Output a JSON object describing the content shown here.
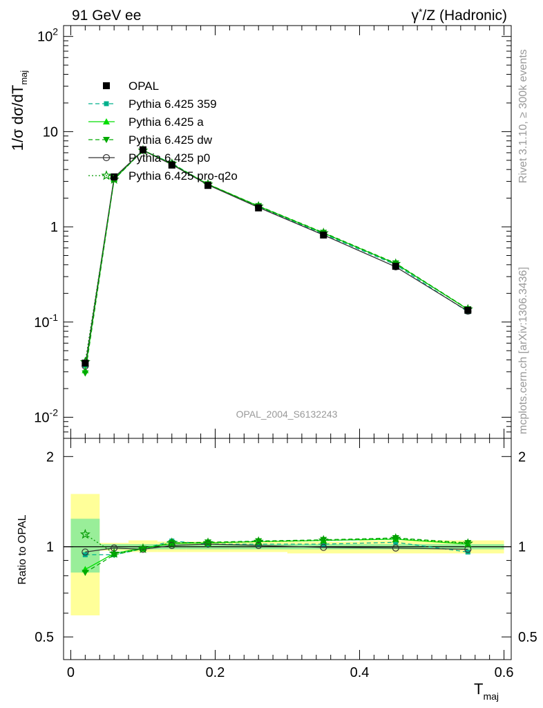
{
  "header": {
    "left": "91 GeV ee",
    "right_prefix": "γ",
    "right_sup": "*",
    "right_suffix": "/Z (Hadronic)"
  },
  "side_labels": {
    "rivet": "Rivet 3.1.10, ≥ 300k events",
    "mcplots": "mcplots.cern.ch [arXiv:1306.3436]"
  },
  "analysis_id": "OPAL_2004_S6132243",
  "axes": {
    "ylabel_top_main": "1/σ dσ/dT",
    "ylabel_top_sub": "maj",
    "ylabel_ratio": "Ratio to OPAL",
    "xlabel_main": "T",
    "xlabel_sub": "maj",
    "top_ticks": [
      {
        "label": "10",
        "sup": "-2",
        "value": 0.01
      },
      {
        "label": "10",
        "sup": "-1",
        "value": 0.1
      },
      {
        "label": "1",
        "sup": "",
        "value": 1
      },
      {
        "label": "10",
        "sup": "",
        "value": 10
      },
      {
        "label": "10",
        "sup": "2",
        "value": 100
      }
    ],
    "ratio_ticks": [
      "0.5",
      "1",
      "2"
    ],
    "x_ticks": [
      "0",
      "0.2",
      "0.4",
      "0.6"
    ]
  },
  "colors": {
    "opal": "#000000",
    "p359": "#00b08c",
    "a": "#00dd00",
    "dw": "#00aa00",
    "p0": "#333333",
    "q2o": "#009900",
    "band_inner": "#99ee99",
    "band_outer": "#ffff99"
  },
  "chart_data": {
    "type": "line",
    "x_scale": "linear",
    "y_scale": "log",
    "xlim": [
      -0.01,
      0.61
    ],
    "ylim": [
      0.006,
      130
    ],
    "ratio_ylim": [
      0.42,
      2.3
    ],
    "ratio_y_scale": "log",
    "grid": false,
    "legend_position": "top-left",
    "x": [
      0.02,
      0.06,
      0.1,
      0.14,
      0.19,
      0.26,
      0.35,
      0.45,
      0.55
    ],
    "bin_edges": [
      0.0,
      0.04,
      0.08,
      0.12,
      0.16,
      0.22,
      0.3,
      0.4,
      0.5,
      0.6
    ],
    "reference": {
      "name": "OPAL",
      "values": [
        0.037,
        3.35,
        6.45,
        4.45,
        2.72,
        1.58,
        0.82,
        0.385,
        0.133
      ],
      "ratio_band_inner": [
        [
          0.82,
          1.24
        ],
        [
          0.98,
          1.02
        ],
        [
          0.98,
          1.02
        ],
        [
          0.98,
          1.02
        ],
        [
          0.98,
          1.02
        ],
        [
          0.98,
          1.02
        ],
        [
          0.98,
          1.02
        ],
        [
          0.98,
          1.02
        ],
        [
          0.98,
          1.02
        ]
      ],
      "ratio_band_outer": [
        [
          0.59,
          1.5
        ],
        [
          0.97,
          1.03
        ],
        [
          0.96,
          1.05
        ],
        [
          0.96,
          1.04
        ],
        [
          0.96,
          1.04
        ],
        [
          0.96,
          1.04
        ],
        [
          0.95,
          1.04
        ],
        [
          0.95,
          1.05
        ],
        [
          0.95,
          1.05
        ]
      ]
    },
    "series": [
      {
        "name": "Pythia 6.425 359",
        "key": "p359",
        "marker": "square",
        "dash": "6,4",
        "values": [
          0.035,
          3.15,
          6.35,
          4.65,
          2.78,
          1.62,
          0.84,
          0.4,
          0.128
        ],
        "ratio": [
          0.94,
          0.94,
          0.985,
          1.045,
          1.02,
          1.02,
          1.02,
          1.035,
          0.96
        ]
      },
      {
        "name": "Pythia 6.425 a",
        "key": "a",
        "marker": "triangle-up",
        "dash": "",
        "values": [
          0.031,
          3.18,
          6.4,
          4.55,
          2.8,
          1.65,
          0.86,
          0.41,
          0.136
        ],
        "ratio": [
          0.84,
          0.95,
          0.99,
          1.025,
          1.03,
          1.04,
          1.05,
          1.06,
          1.02
        ]
      },
      {
        "name": "Pythia 6.425 dw",
        "key": "dw",
        "marker": "triangle-down",
        "dash": "6,4",
        "values": [
          0.029,
          3.15,
          6.35,
          4.6,
          2.81,
          1.66,
          0.87,
          0.415,
          0.137
        ],
        "ratio": [
          0.82,
          0.94,
          0.985,
          1.03,
          1.035,
          1.045,
          1.055,
          1.07,
          1.03
        ]
      },
      {
        "name": "Pythia 6.425 p0",
        "key": "p0",
        "marker": "circle-open",
        "dash": "",
        "values": [
          0.0345,
          3.3,
          6.35,
          4.5,
          2.76,
          1.6,
          0.82,
          0.38,
          0.13
        ],
        "ratio": [
          0.96,
          0.99,
          0.98,
          1.01,
          1.02,
          1.01,
          0.995,
          0.99,
          0.98
        ]
      },
      {
        "name": "Pythia 6.425 pro-q2o",
        "key": "q2o",
        "marker": "star-open",
        "dash": "2,3",
        "values": [
          0.038,
          3.15,
          6.35,
          4.6,
          2.79,
          1.64,
          0.86,
          0.41,
          0.136
        ],
        "ratio": [
          1.1,
          0.95,
          0.985,
          1.03,
          1.03,
          1.04,
          1.05,
          1.065,
          1.025
        ]
      }
    ]
  }
}
